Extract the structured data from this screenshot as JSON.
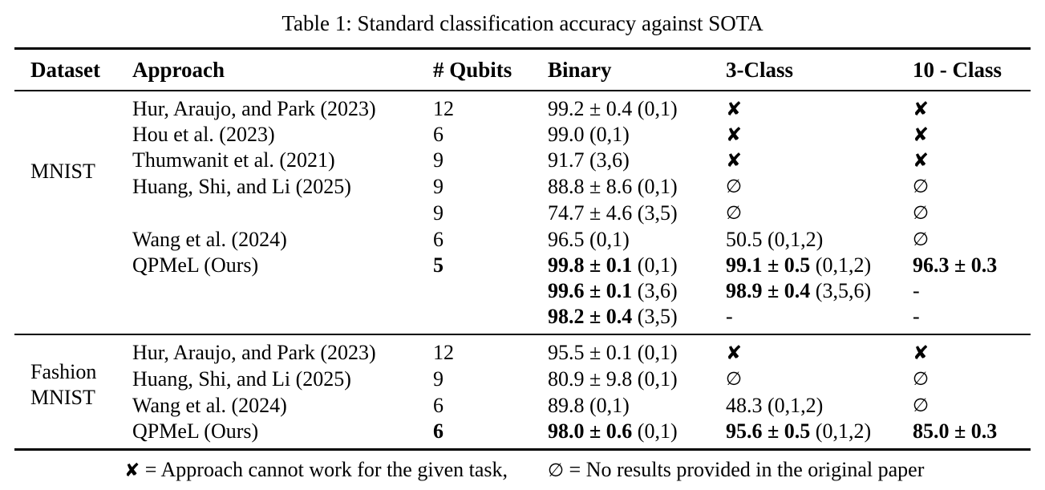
{
  "caption": "Table 1: Standard classification accuracy against SOTA",
  "symbols": {
    "cross": "✘",
    "empty_set": "∅",
    "dash": "-"
  },
  "columns": [
    "Dataset",
    "Approach",
    "# Qubits",
    "Binary",
    "3-Class",
    "10 - Class"
  ],
  "sections": [
    {
      "dataset": [
        "MNIST"
      ],
      "rows": [
        {
          "approach": "Hur, Araujo, and Park (2023)",
          "qubits": "12",
          "qubits_bold": false,
          "binary": {
            "type": "num",
            "value": "99.2 ± 0.4",
            "pair": "(0,1)",
            "bold": false
          },
          "three_class": {
            "type": "cross"
          },
          "ten_class": {
            "type": "cross"
          }
        },
        {
          "approach": "Hou et al. (2023)",
          "qubits": "6",
          "qubits_bold": false,
          "binary": {
            "type": "num",
            "value": "99.0",
            "pair": "(0,1)",
            "bold": false
          },
          "three_class": {
            "type": "cross"
          },
          "ten_class": {
            "type": "cross"
          }
        },
        {
          "approach": "Thumwanit et al. (2021)",
          "qubits": "9",
          "qubits_bold": false,
          "binary": {
            "type": "num",
            "value": "91.7",
            "pair": "(3,6)",
            "bold": false
          },
          "three_class": {
            "type": "cross"
          },
          "ten_class": {
            "type": "cross"
          }
        },
        {
          "approach": "Huang, Shi, and Li (2025)",
          "qubits": "9",
          "qubits_bold": false,
          "binary": {
            "type": "num",
            "value": "88.8 ± 8.6",
            "pair": "(0,1)",
            "bold": false
          },
          "three_class": {
            "type": "empty"
          },
          "ten_class": {
            "type": "empty"
          }
        },
        {
          "approach": "",
          "qubits": "9",
          "qubits_bold": false,
          "binary": {
            "type": "num",
            "value": "74.7 ± 4.6",
            "pair": "(3,5)",
            "bold": false
          },
          "three_class": {
            "type": "empty"
          },
          "ten_class": {
            "type": "empty"
          }
        },
        {
          "approach": "Wang et al. (2024)",
          "qubits": "6",
          "qubits_bold": false,
          "binary": {
            "type": "num",
            "value": "96.5",
            "pair": "(0,1)",
            "bold": false
          },
          "three_class": {
            "type": "num",
            "value": "50.5",
            "pair": "(0,1,2)",
            "bold": false
          },
          "ten_class": {
            "type": "empty"
          }
        },
        {
          "approach": "QPMeL (Ours)",
          "qubits": "5",
          "qubits_bold": true,
          "binary": {
            "type": "num",
            "value": "99.8 ± 0.1",
            "pair": "(0,1)",
            "bold": true
          },
          "three_class": {
            "type": "num",
            "value": "99.1 ± 0.5",
            "pair": "(0,1,2)",
            "bold": true
          },
          "ten_class": {
            "type": "num",
            "value": "96.3 ± 0.3",
            "pair": "",
            "bold": true
          }
        },
        {
          "approach": "",
          "qubits": "",
          "qubits_bold": false,
          "binary": {
            "type": "num",
            "value": "99.6 ± 0.1",
            "pair": "(3,6)",
            "bold": true
          },
          "three_class": {
            "type": "num",
            "value": "98.9 ± 0.4",
            "pair": "(3,5,6)",
            "bold": true
          },
          "ten_class": {
            "type": "dash"
          }
        },
        {
          "approach": "",
          "qubits": "",
          "qubits_bold": false,
          "binary": {
            "type": "num",
            "value": "98.2 ± 0.4",
            "pair": "(3,5)",
            "bold": true
          },
          "three_class": {
            "type": "dash"
          },
          "ten_class": {
            "type": "dash"
          }
        }
      ]
    },
    {
      "dataset": [
        "Fashion",
        "MNIST"
      ],
      "rows": [
        {
          "approach": "Hur, Araujo, and Park (2023)",
          "qubits": "12",
          "qubits_bold": false,
          "binary": {
            "type": "num",
            "value": "95.5 ± 0.1",
            "pair": "(0,1)",
            "bold": false
          },
          "three_class": {
            "type": "cross"
          },
          "ten_class": {
            "type": "cross"
          }
        },
        {
          "approach": "Huang, Shi, and Li (2025)",
          "qubits": "9",
          "qubits_bold": false,
          "binary": {
            "type": "num",
            "value": "80.9 ± 9.8",
            "pair": "(0,1)",
            "bold": false
          },
          "three_class": {
            "type": "empty"
          },
          "ten_class": {
            "type": "empty"
          }
        },
        {
          "approach": "Wang et al. (2024)",
          "qubits": "6",
          "qubits_bold": false,
          "binary": {
            "type": "num",
            "value": "89.8",
            "pair": "(0,1)",
            "bold": false
          },
          "three_class": {
            "type": "num",
            "value": "48.3",
            "pair": "(0,1,2)",
            "bold": false
          },
          "ten_class": {
            "type": "empty"
          }
        },
        {
          "approach": "QPMeL (Ours)",
          "qubits": "6",
          "qubits_bold": true,
          "binary": {
            "type": "num",
            "value": "98.0 ± 0.6",
            "pair": "(0,1)",
            "bold": true
          },
          "three_class": {
            "type": "num",
            "value": "95.6 ± 0.5",
            "pair": "(0,1,2)",
            "bold": true
          },
          "ten_class": {
            "type": "num",
            "value": "85.0 ± 0.3",
            "pair": "",
            "bold": true
          }
        }
      ]
    }
  ],
  "legend": {
    "cross_symbol": "✘",
    "cross_text": "= Approach cannot work for the given task,",
    "empty_symbol": "∅",
    "empty_text": "= No results provided in the original paper"
  }
}
